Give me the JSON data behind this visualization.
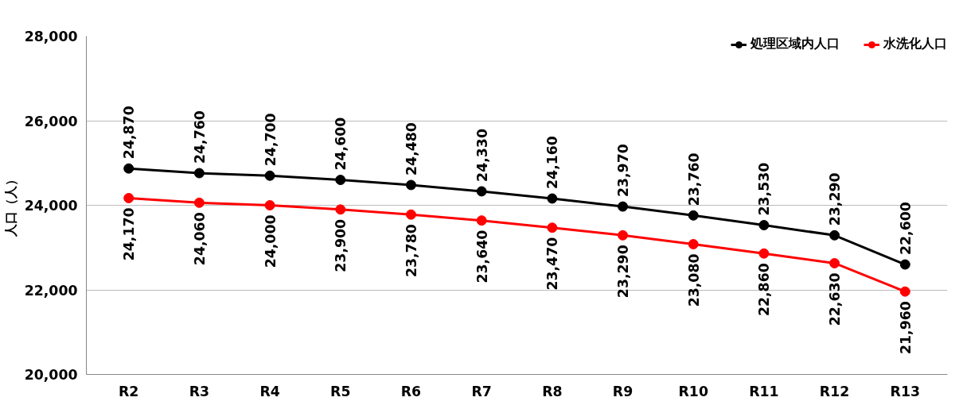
{
  "chart_data": {
    "type": "line",
    "ylabel": "人口（人）",
    "categories": [
      "R2",
      "R3",
      "R4",
      "R5",
      "R6",
      "R7",
      "R8",
      "R9",
      "R10",
      "R11",
      "R12",
      "R13"
    ],
    "series": [
      {
        "name": "処理区域内人口",
        "color": "#000000",
        "values": [
          24870,
          24760,
          24700,
          24600,
          24480,
          24330,
          24160,
          23970,
          23760,
          23530,
          23290,
          22600
        ],
        "value_labels": [
          "24,870",
          "24,760",
          "24,700",
          "24,600",
          "24,480",
          "24,330",
          "24,160",
          "23,970",
          "23,760",
          "23,530",
          "23,290",
          "22,600"
        ]
      },
      {
        "name": "水洗化人口",
        "color": "#ff0000",
        "values": [
          24170,
          24060,
          24000,
          23900,
          23780,
          23640,
          23470,
          23290,
          23080,
          22860,
          22630,
          21960
        ],
        "value_labels": [
          "24,170",
          "24,060",
          "24,000",
          "23,900",
          "23,780",
          "23,640",
          "23,470",
          "23,290",
          "23,080",
          "22,860",
          "22,630",
          "21,960"
        ]
      }
    ],
    "ylim": [
      20000,
      28000
    ],
    "yticks": [
      {
        "value": 20000,
        "label": "20,000"
      },
      {
        "value": 22000,
        "label": "22,000"
      },
      {
        "value": 24000,
        "label": "24,000"
      },
      {
        "value": 26000,
        "label": "26,000"
      },
      {
        "value": 28000,
        "label": "28,000"
      }
    ],
    "grid": "y",
    "legend": "top right",
    "marker": "circle",
    "line_style": "solid"
  }
}
